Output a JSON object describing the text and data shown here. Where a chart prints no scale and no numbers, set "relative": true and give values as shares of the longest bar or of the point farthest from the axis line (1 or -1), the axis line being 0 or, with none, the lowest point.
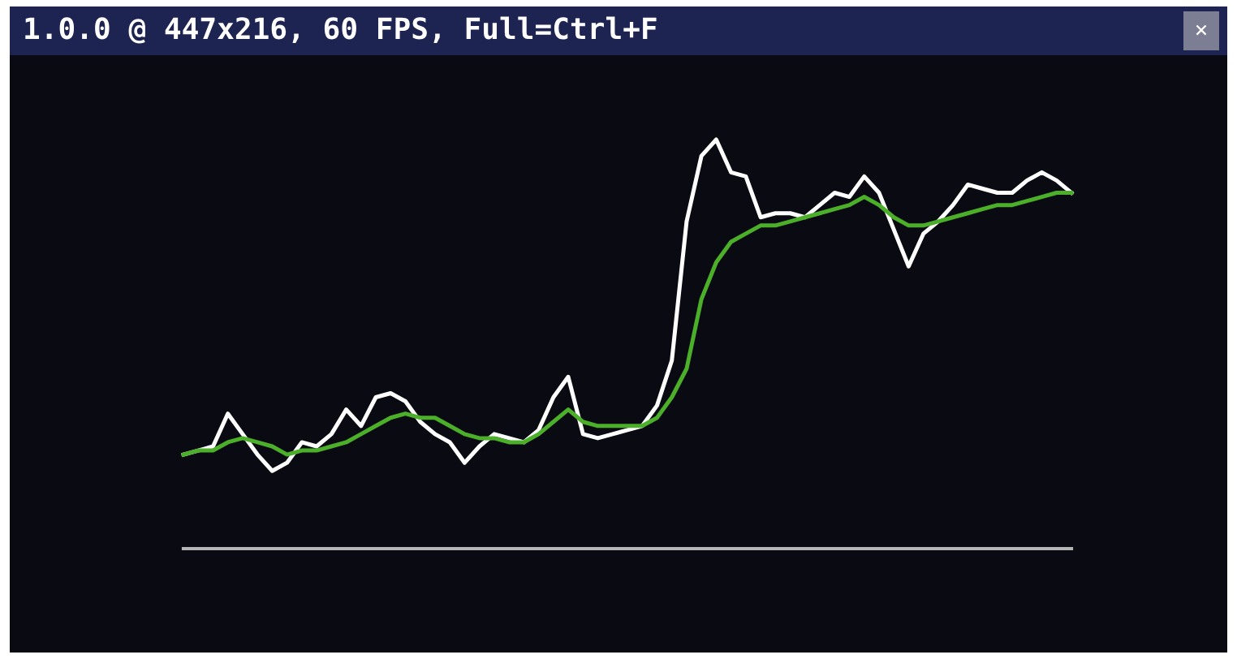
{
  "chart_data": {
    "type": "line",
    "title": "1.0.0 @ 447x216, 60 FPS, Full=Ctrl+F",
    "annotations": [
      "×"
    ],
    "relative": true,
    "categories": [
      null,
      null,
      null,
      null,
      null,
      null,
      null,
      null,
      null,
      null,
      null,
      null,
      null,
      null,
      null,
      null,
      null,
      null,
      null,
      null,
      null,
      null,
      null,
      null,
      null,
      null,
      null,
      null,
      null,
      null,
      null,
      null,
      null,
      null,
      null,
      null,
      null,
      null,
      null,
      null,
      null,
      null,
      null,
      null,
      null,
      null,
      null,
      null,
      null,
      null,
      null,
      null,
      null,
      null,
      null,
      null,
      null,
      null,
      null,
      null,
      null
    ],
    "series": [
      {
        "color": "#ffffff",
        "values": [
          0.23,
          0.24,
          0.25,
          0.33,
          0.28,
          0.23,
          0.19,
          0.21,
          0.26,
          0.25,
          0.28,
          0.34,
          0.3,
          0.37,
          0.38,
          0.36,
          0.31,
          0.28,
          0.26,
          0.21,
          0.25,
          0.28,
          0.27,
          0.26,
          0.29,
          0.37,
          0.42,
          0.28,
          0.27,
          0.28,
          0.29,
          0.3,
          0.35,
          0.46,
          0.8,
          0.96,
          1.0,
          0.92,
          0.91,
          0.81,
          0.82,
          0.82,
          0.81,
          0.84,
          0.87,
          0.86,
          0.91,
          0.87,
          0.78,
          0.69,
          0.77,
          0.8,
          0.84,
          0.89,
          0.88,
          0.87,
          0.87,
          0.9,
          0.92,
          0.9,
          0.87
        ]
      },
      {
        "color": "#4caf2a",
        "values": [
          0.23,
          0.24,
          0.24,
          0.26,
          0.27,
          0.26,
          0.25,
          0.23,
          0.24,
          0.24,
          0.25,
          0.26,
          0.28,
          0.3,
          0.32,
          0.33,
          0.32,
          0.32,
          0.3,
          0.28,
          0.27,
          0.27,
          0.26,
          0.26,
          0.28,
          0.31,
          0.34,
          0.31,
          0.3,
          0.3,
          0.3,
          0.3,
          0.32,
          0.37,
          0.44,
          0.61,
          0.7,
          0.75,
          0.77,
          0.79,
          0.79,
          0.8,
          0.81,
          0.82,
          0.83,
          0.84,
          0.86,
          0.84,
          0.81,
          0.79,
          0.79,
          0.8,
          0.81,
          0.82,
          0.83,
          0.84,
          0.84,
          0.85,
          0.86,
          0.87,
          0.87
        ]
      }
    ]
  }
}
